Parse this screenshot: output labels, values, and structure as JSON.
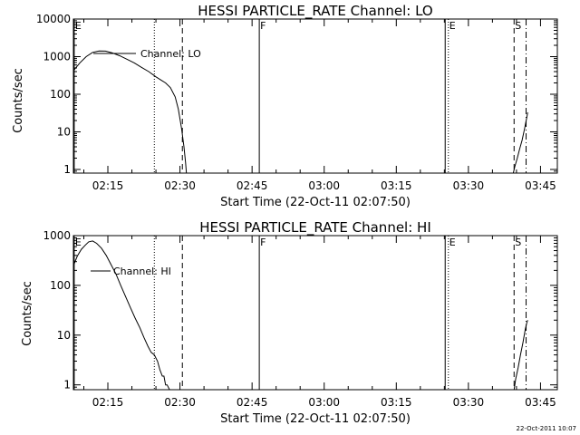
{
  "footer_timestamp": "22-Oct-2011 10:07",
  "chart_data": [
    {
      "type": "line",
      "title": "HESSI PARTICLE_RATE Channel: LO",
      "xlabel": "Start Time (22-Oct-11 02:07:50)",
      "ylabel": "Counts/sec",
      "yscale": "log",
      "ylim": [
        0.8,
        10000
      ],
      "xlim": [
        "02:07:50",
        "03:48:30"
      ],
      "y_ticks": [
        {
          "v": 10000,
          "label": "10000"
        },
        {
          "v": 1000,
          "label": "1000"
        },
        {
          "v": 100,
          "label": "100"
        },
        {
          "v": 10,
          "label": "10"
        },
        {
          "v": 1,
          "label": "1"
        }
      ],
      "x_ticks": [
        "02:15",
        "02:30",
        "02:45",
        "03:00",
        "03:15",
        "03:30",
        "03:45"
      ],
      "legend": {
        "series": "Channel: LO",
        "position": "top-left"
      },
      "markers": [
        {
          "time": "02:08:00",
          "style": "solid",
          "label": "E"
        },
        {
          "time": "02:24:40",
          "style": "dotted",
          "label": ""
        },
        {
          "time": "02:30:30",
          "style": "dashed",
          "label": ""
        },
        {
          "time": "02:46:30",
          "style": "solid",
          "label": "F"
        },
        {
          "time": "03:25:10",
          "style": "solid",
          "label": ""
        },
        {
          "time": "03:25:50",
          "style": "dotted",
          "label": "E"
        },
        {
          "time": "03:39:30",
          "style": "dashed",
          "label": "S"
        },
        {
          "time": "03:42:00",
          "style": "dashdot",
          "label": ""
        }
      ],
      "series": [
        {
          "name": "Channel: LO",
          "points": [
            [
              "02:07:50",
              420
            ],
            [
              "02:09:10",
              680
            ],
            [
              "02:10:30",
              1000
            ],
            [
              "02:11:50",
              1300
            ],
            [
              "02:13:10",
              1420
            ],
            [
              "02:14:30",
              1400
            ],
            [
              "02:16:00",
              1250
            ],
            [
              "02:17:30",
              1050
            ],
            [
              "02:19:00",
              850
            ],
            [
              "02:20:30",
              680
            ],
            [
              "02:22:00",
              520
            ],
            [
              "02:23:30",
              400
            ],
            [
              "02:25:00",
              290
            ],
            [
              "02:26:00",
              240
            ],
            [
              "02:27:00",
              200
            ],
            [
              "02:28:00",
              150
            ],
            [
              "02:29:00",
              85
            ],
            [
              "02:29:40",
              40
            ],
            [
              "02:30:20",
              12
            ],
            [
              "02:30:50",
              4
            ],
            [
              "02:31:10",
              1.5
            ],
            [
              "02:31:20",
              0.8
            ]
          ]
        },
        {
          "name": "",
          "points": [
            [
              "03:39:20",
              0.8
            ],
            [
              "03:39:40",
              1.2
            ],
            [
              "03:40:10",
              2
            ],
            [
              "03:40:40",
              3.5
            ],
            [
              "03:41:10",
              6
            ],
            [
              "03:41:40",
              12
            ],
            [
              "03:42:10",
              25
            ],
            [
              "03:42:20",
              33
            ]
          ]
        }
      ]
    },
    {
      "type": "line",
      "title": "HESSI PARTICLE_RATE Channel: HI",
      "xlabel": "Start Time (22-Oct-11 02:07:50)",
      "ylabel": "Counts/sec",
      "yscale": "log",
      "ylim": [
        0.8,
        1000
      ],
      "xlim": [
        "02:07:50",
        "03:48:30"
      ],
      "y_ticks": [
        {
          "v": 1000,
          "label": "1000"
        },
        {
          "v": 100,
          "label": "100"
        },
        {
          "v": 10,
          "label": "10"
        },
        {
          "v": 1,
          "label": "1"
        }
      ],
      "x_ticks": [
        "02:15",
        "02:30",
        "02:45",
        "03:00",
        "03:15",
        "03:30",
        "03:45"
      ],
      "legend": {
        "series": "Channel: HI",
        "position": "top-left"
      },
      "markers": [
        {
          "time": "02:08:00",
          "style": "solid",
          "label": "E"
        },
        {
          "time": "02:24:40",
          "style": "dotted",
          "label": ""
        },
        {
          "time": "02:30:30",
          "style": "dashed",
          "label": ""
        },
        {
          "time": "02:46:30",
          "style": "solid",
          "label": "F"
        },
        {
          "time": "03:25:10",
          "style": "solid",
          "label": ""
        },
        {
          "time": "03:25:50",
          "style": "dotted",
          "label": "E"
        },
        {
          "time": "03:39:30",
          "style": "dashed",
          "label": "S"
        },
        {
          "time": "03:42:00",
          "style": "dashdot",
          "label": ""
        }
      ],
      "series": [
        {
          "name": "Channel: HI",
          "points": [
            [
              "02:07:50",
              250
            ],
            [
              "02:08:40",
              390
            ],
            [
              "02:09:30",
              530
            ],
            [
              "02:10:20",
              650
            ],
            [
              "02:11:00",
              750
            ],
            [
              "02:11:50",
              780
            ],
            [
              "02:12:40",
              700
            ],
            [
              "02:13:40",
              560
            ],
            [
              "02:14:40",
              400
            ],
            [
              "02:15:40",
              260
            ],
            [
              "02:16:40",
              170
            ],
            [
              "02:17:40",
              100
            ],
            [
              "02:18:40",
              60
            ],
            [
              "02:19:40",
              36
            ],
            [
              "02:20:40",
              22
            ],
            [
              "02:21:40",
              14
            ],
            [
              "02:22:30",
              9
            ],
            [
              "02:23:20",
              6
            ],
            [
              "02:24:00",
              4.5
            ],
            [
              "02:24:40",
              4
            ],
            [
              "02:25:20",
              3
            ],
            [
              "02:25:50",
              2
            ],
            [
              "02:26:20",
              1.5
            ],
            [
              "02:26:40",
              1.5
            ],
            [
              "02:27:00",
              1
            ],
            [
              "02:27:20",
              1
            ],
            [
              "02:27:50",
              0.8
            ]
          ]
        },
        {
          "name": "",
          "points": [
            [
              "03:39:30",
              0.8
            ],
            [
              "03:39:50",
              1.3
            ],
            [
              "03:40:20",
              2.2
            ],
            [
              "03:40:50",
              4
            ],
            [
              "03:41:20",
              7
            ],
            [
              "03:41:50",
              13
            ],
            [
              "03:42:10",
              18
            ],
            [
              "03:42:20",
              20
            ]
          ]
        }
      ]
    }
  ]
}
